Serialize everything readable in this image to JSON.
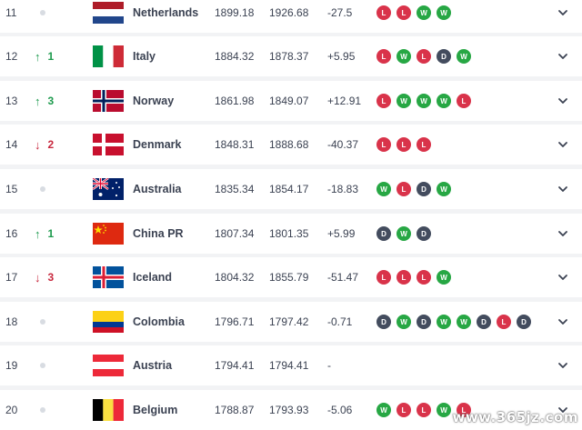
{
  "rows": [
    {
      "rank": "11",
      "move": "",
      "dir": "none",
      "team": "Netherlands",
      "flag": "netherlands",
      "points": "1899.18",
      "previous": "1926.68",
      "diff": "-27.5",
      "form": [
        "L",
        "L",
        "W",
        "W"
      ]
    },
    {
      "rank": "12",
      "move": "1",
      "dir": "up",
      "team": "Italy",
      "flag": "italy",
      "points": "1884.32",
      "previous": "1878.37",
      "diff": "+5.95",
      "form": [
        "L",
        "W",
        "L",
        "D",
        "W"
      ]
    },
    {
      "rank": "13",
      "move": "3",
      "dir": "up",
      "team": "Norway",
      "flag": "norway",
      "points": "1861.98",
      "previous": "1849.07",
      "diff": "+12.91",
      "form": [
        "L",
        "W",
        "W",
        "W",
        "L"
      ]
    },
    {
      "rank": "14",
      "move": "2",
      "dir": "down",
      "team": "Denmark",
      "flag": "denmark",
      "points": "1848.31",
      "previous": "1888.68",
      "diff": "-40.37",
      "form": [
        "L",
        "L",
        "L"
      ]
    },
    {
      "rank": "15",
      "move": "",
      "dir": "none",
      "team": "Australia",
      "flag": "australia",
      "points": "1835.34",
      "previous": "1854.17",
      "diff": "-18.83",
      "form": [
        "W",
        "L",
        "D",
        "W"
      ]
    },
    {
      "rank": "16",
      "move": "1",
      "dir": "up",
      "team": "China PR",
      "flag": "china",
      "points": "1807.34",
      "previous": "1801.35",
      "diff": "+5.99",
      "form": [
        "D",
        "W",
        "D"
      ]
    },
    {
      "rank": "17",
      "move": "3",
      "dir": "down",
      "team": "Iceland",
      "flag": "iceland",
      "points": "1804.32",
      "previous": "1855.79",
      "diff": "-51.47",
      "form": [
        "L",
        "L",
        "L",
        "W"
      ]
    },
    {
      "rank": "18",
      "move": "",
      "dir": "none",
      "team": "Colombia",
      "flag": "colombia",
      "points": "1796.71",
      "previous": "1797.42",
      "diff": "-0.71",
      "form": [
        "D",
        "W",
        "D",
        "W",
        "W",
        "D",
        "L",
        "D"
      ]
    },
    {
      "rank": "19",
      "move": "",
      "dir": "none",
      "team": "Austria",
      "flag": "austria",
      "points": "1794.41",
      "previous": "1794.41",
      "diff": "-",
      "form": []
    },
    {
      "rank": "20",
      "move": "",
      "dir": "none",
      "team": "Belgium",
      "flag": "belgium",
      "points": "1788.87",
      "previous": "1793.93",
      "diff": "-5.06",
      "form": [
        "W",
        "L",
        "L",
        "W",
        "L"
      ]
    }
  ],
  "colors": {
    "win": "#27a744",
    "loss": "#d9334a",
    "draw": "#434c5e",
    "up": "#1e9b4e",
    "down": "#c8283e"
  },
  "icons": {
    "expand": "chevron-down-icon",
    "up": "arrow-up-icon",
    "down": "arrow-down-icon"
  },
  "watermark": "www.365jz.com"
}
